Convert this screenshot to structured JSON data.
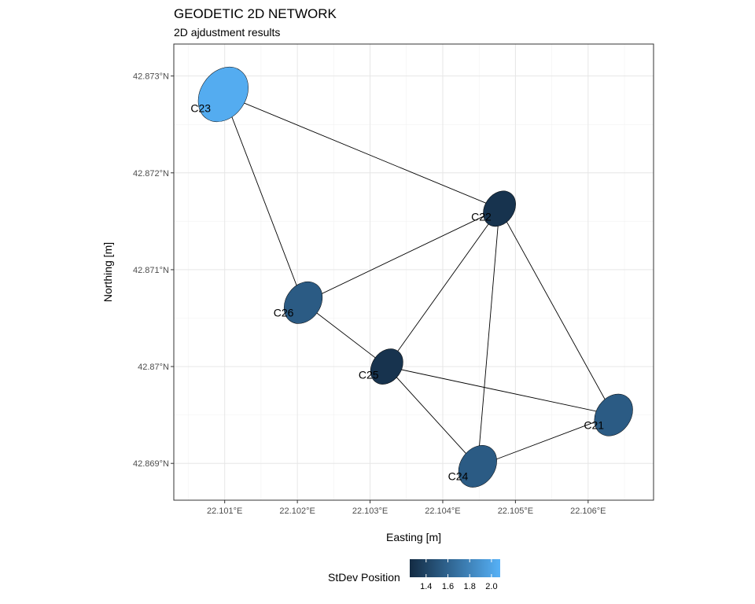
{
  "chart_data": {
    "type": "scatter",
    "title": "GEODETIC 2D NETWORK",
    "subtitle": "2D ajdustment results",
    "xlabel": "Easting [m]",
    "ylabel": "Northing [m]",
    "xlim": [
      22.1003,
      22.1069
    ],
    "ylim": [
      42.86862,
      42.87333
    ],
    "x_ticks": [
      22.101,
      22.102,
      22.103,
      22.104,
      22.105,
      22.106
    ],
    "x_tick_labels": [
      "22.101°E",
      "22.102°E",
      "22.103°E",
      "22.104°E",
      "22.105°E",
      "22.106°E"
    ],
    "y_ticks": [
      42.869,
      42.87,
      42.871,
      42.872,
      42.873
    ],
    "y_tick_labels": [
      "42.869°N",
      "42.87°N",
      "42.871°N",
      "42.872°N",
      "42.873°N"
    ],
    "grid": true,
    "points": [
      {
        "name": "C21",
        "x": 22.10635,
        "y": 42.8695,
        "stdev": 1.55
      },
      {
        "name": "C22",
        "x": 22.10478,
        "y": 42.87163,
        "stdev": 1.3
      },
      {
        "name": "C23",
        "x": 22.10098,
        "y": 42.87281,
        "stdev": 2.05
      },
      {
        "name": "C24",
        "x": 22.10448,
        "y": 42.86897,
        "stdev": 1.55
      },
      {
        "name": "C25",
        "x": 22.10323,
        "y": 42.87,
        "stdev": 1.3
      },
      {
        "name": "C26",
        "x": 22.10208,
        "y": 42.87066,
        "stdev": 1.55
      }
    ],
    "edges": [
      [
        "C23",
        "C22"
      ],
      [
        "C23",
        "C26"
      ],
      [
        "C26",
        "C22"
      ],
      [
        "C26",
        "C25"
      ],
      [
        "C25",
        "C22"
      ],
      [
        "C25",
        "C21"
      ],
      [
        "C25",
        "C24"
      ],
      [
        "C22",
        "C24"
      ],
      [
        "C22",
        "C21"
      ],
      [
        "C24",
        "C21"
      ]
    ],
    "legend": {
      "title": "StDev Position",
      "placement": "bottom",
      "range": [
        1.25,
        2.08
      ],
      "ticks": [
        1.4,
        1.6,
        1.8,
        2.0
      ],
      "tick_labels": [
        "1.4",
        "1.6",
        "1.8",
        "2.0"
      ],
      "low_color": "#132b43",
      "high_color": "#56b1f7"
    }
  }
}
